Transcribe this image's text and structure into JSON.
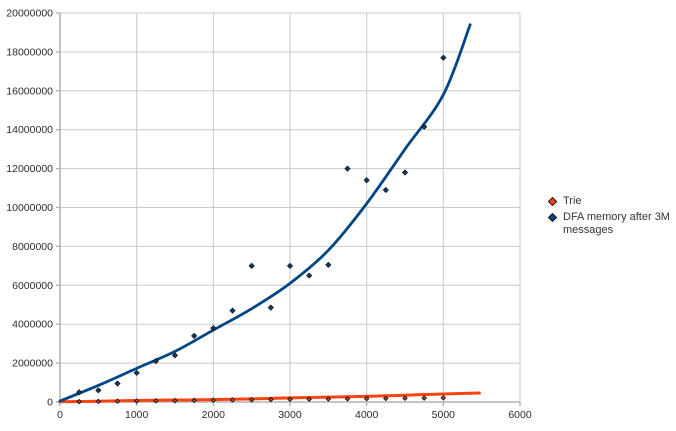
{
  "colors": {
    "background": "#ffffff",
    "grid": "#c9c9c9",
    "axis": "#b2b2b2",
    "label_text": "#2b2b33",
    "legend_text": "#333340",
    "trie_trend": "#ff420e",
    "dfa_trend": "#004586",
    "trie_marker_fill": "#ff420e",
    "dfa_marker_fill": "#004586",
    "marker_stroke": "#1a1a1a"
  },
  "chart_data": {
    "type": "scatter",
    "title": "",
    "xlabel": "",
    "ylabel": "",
    "grid": true,
    "legend_position": "right",
    "x_axis": {
      "min": 0,
      "max": 6000,
      "tick_interval": 1000,
      "tick_values": [
        0,
        1000,
        2000,
        3000,
        4000,
        5000,
        6000
      ],
      "tick_labels": [
        "0",
        "1000",
        "2000",
        "3000",
        "4000",
        "5000",
        "6000"
      ]
    },
    "y_axis": {
      "min": 0,
      "max": 20000000,
      "tick_interval": 2000000,
      "tick_values": [
        0,
        2000000,
        4000000,
        6000000,
        8000000,
        10000000,
        12000000,
        14000000,
        16000000,
        18000000,
        20000000
      ],
      "tick_labels": [
        "0",
        "2000000",
        "4000000",
        "6000000",
        "8000000",
        "10000000",
        "12000000",
        "14000000",
        "16000000",
        "18000000",
        "20000000"
      ]
    },
    "series": [
      {
        "name": "Trie",
        "marker": "diamond",
        "marker_fill": "#ff420e",
        "marker_stroke": "#1a1a1a",
        "marker_size": 2.1,
        "x": [
          250,
          500,
          750,
          1000,
          1250,
          1500,
          1750,
          2000,
          2250,
          2500,
          2750,
          3000,
          3250,
          3500,
          3750,
          4000,
          4250,
          4500,
          4750,
          5000
        ],
        "y": [
          20000,
          30000,
          40000,
          50000,
          60000,
          70000,
          85000,
          95000,
          105000,
          115000,
          125000,
          135000,
          145000,
          155000,
          165000,
          175000,
          185000,
          195000,
          205000,
          215000
        ],
        "trendline": {
          "color": "#ff420e",
          "width": 3,
          "points": [
            [
              0,
              10000
            ],
            [
              500,
              40000
            ],
            [
              1000,
              80000
            ],
            [
              1500,
              100000
            ],
            [
              2000,
              120000
            ],
            [
              2500,
              160000
            ],
            [
              3000,
              210000
            ],
            [
              3500,
              250000
            ],
            [
              4000,
              290000
            ],
            [
              4500,
              350000
            ],
            [
              5000,
              410000
            ],
            [
              5470,
              460000
            ]
          ]
        }
      },
      {
        "name": "DFA memory after 3M messages",
        "marker": "diamond",
        "marker_fill": "#004586",
        "marker_stroke": "#1a1a1a",
        "marker_size": 2.4,
        "x": [
          250,
          500,
          750,
          1000,
          1250,
          1500,
          1750,
          2000,
          2250,
          2500,
          2750,
          3000,
          3250,
          3500,
          3750,
          4000,
          4250,
          4500,
          4750,
          5000
        ],
        "y": [
          500000,
          600000,
          950000,
          1500000,
          2100000,
          2400000,
          3400000,
          3800000,
          4700000,
          7000000,
          4850000,
          7000000,
          6500000,
          7050000,
          12000000,
          11400000,
          10900000,
          11800000,
          14150000,
          17700000
        ],
        "trendline": {
          "color": "#004586",
          "width": 2.8,
          "points": [
            [
              0,
              50000
            ],
            [
              500,
              850000
            ],
            [
              1000,
              1730000
            ],
            [
              1500,
              2600000
            ],
            [
              2000,
              3700000
            ],
            [
              2500,
              4800000
            ],
            [
              3000,
              6100000
            ],
            [
              3500,
              7800000
            ],
            [
              4000,
              10200000
            ],
            [
              4500,
              13000000
            ],
            [
              5000,
              15800000
            ],
            [
              5350,
              19400000
            ]
          ]
        }
      }
    ]
  },
  "legend": {
    "items": [
      {
        "label": "Trie"
      },
      {
        "label": "DFA memory after 3M messages"
      }
    ]
  }
}
